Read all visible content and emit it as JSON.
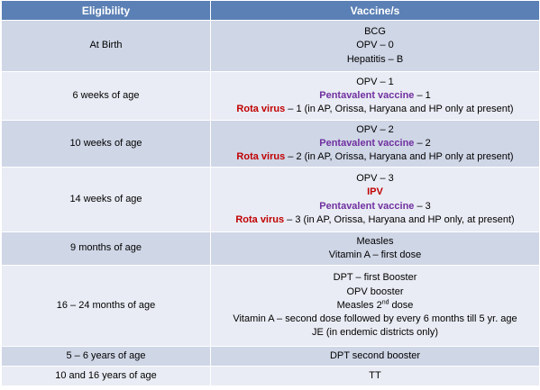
{
  "header": {
    "eligibility": "Eligibility",
    "vaccines": "Vaccine/s"
  },
  "colors": {
    "header_bg": "#5b80b5",
    "band_dark": "#cfd6e6",
    "band_light": "#e9ecf4",
    "purple": "#7030a0",
    "red": "#c00000"
  },
  "rows": [
    {
      "eligibility": "At Birth",
      "lines": [
        {
          "text": "BCG"
        },
        {
          "text": "OPV – 0"
        },
        {
          "text": "Hepatitis – B"
        }
      ]
    },
    {
      "eligibility": "6 weeks of age",
      "lines": [
        {
          "text": "OPV – 1"
        },
        {
          "bold": "Pentavalent vaccine",
          "rest": " – 1"
        },
        {
          "bold": "Rota virus",
          "rest": " – 1  (in AP, Orissa, Haryana and HP only at present)"
        }
      ]
    },
    {
      "eligibility": "10 weeks of age",
      "lines": [
        {
          "text": "OPV – 2"
        },
        {
          "bold": "Pentavalent vaccine",
          "rest": " – 2"
        },
        {
          "bold": "Rota virus",
          "rest": " – 2  (in AP, Orissa, Haryana and HP only at present)"
        }
      ]
    },
    {
      "eligibility": "14 weeks of age",
      "lines": [
        {
          "text": "OPV – 3"
        },
        {
          "bold": "IPV"
        },
        {
          "bold": "Pentavalent vaccine",
          "rest": " – 3"
        },
        {
          "bold": "Rota virus",
          "rest": " – 3  (in AP, Orissa, Haryana and HP only, at present)"
        }
      ]
    },
    {
      "eligibility": "9 months of age",
      "lines": [
        {
          "text": "Measles"
        },
        {
          "text": "Vitamin A – first dose"
        }
      ]
    },
    {
      "eligibility": "16 – 24 months of age",
      "lines": [
        {
          "text": "DPT – first Booster"
        },
        {
          "text": "OPV booster"
        },
        {
          "text": "Measles 2",
          "sup": "nd",
          "rest": " dose"
        },
        {
          "text": "Vitamin A – second dose followed by every 6 months till 5 yr. age"
        },
        {
          "text": "JE (in endemic districts only)"
        }
      ]
    },
    {
      "eligibility": "5 – 6 years of age",
      "lines": [
        {
          "text": "DPT second booster"
        }
      ]
    },
    {
      "eligibility": "10 and 16 years of age",
      "lines": [
        {
          "text": "TT"
        }
      ]
    }
  ]
}
